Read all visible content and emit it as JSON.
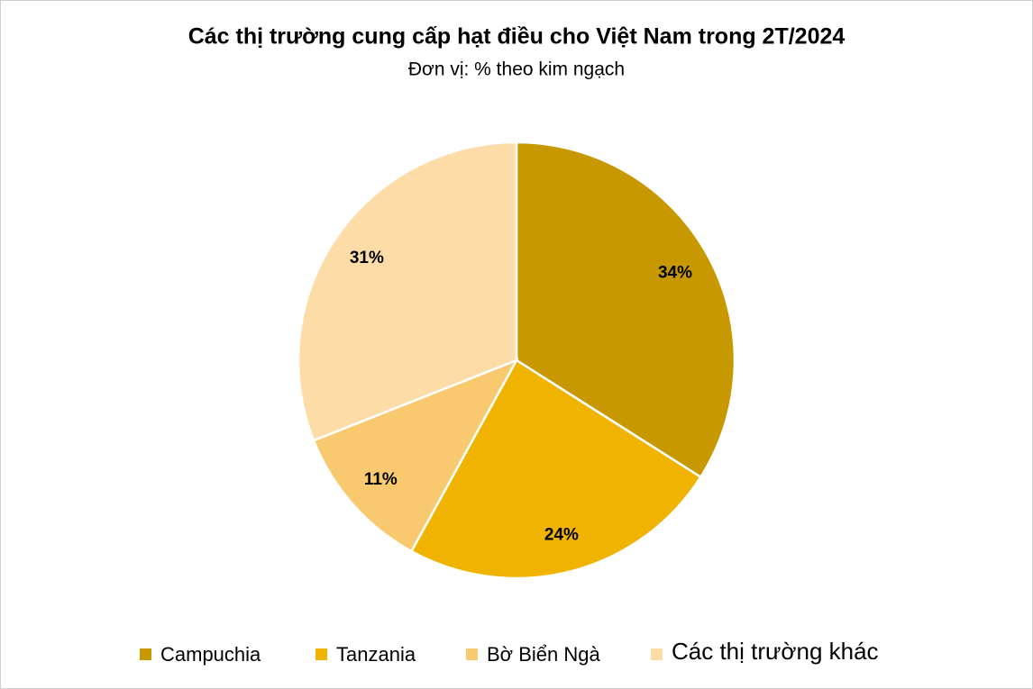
{
  "chart_data": {
    "type": "pie",
    "title": "Các thị trường cung cấp hạt điều cho Việt Nam trong 2T/2024",
    "subtitle": "Đơn vị: % theo kim ngạch",
    "categories": [
      "Campuchia",
      "Tanzania",
      "Bờ Biển Ngà",
      "Các thị trường khác"
    ],
    "values": [
      34,
      24,
      11,
      31
    ],
    "value_labels": [
      "34%",
      "24%",
      "11%",
      "31%"
    ],
    "colors": [
      "#c89800",
      "#f0b400",
      "#f9c970",
      "#fddca8"
    ],
    "legend": "bottom"
  }
}
